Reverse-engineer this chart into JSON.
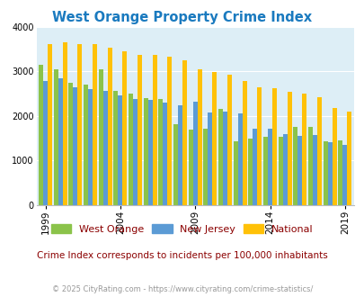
{
  "title": "West Orange Property Crime Index",
  "years": [
    1999,
    2000,
    2001,
    2002,
    2003,
    2004,
    2005,
    2006,
    2007,
    2008,
    2009,
    2010,
    2011,
    2012,
    2013,
    2014,
    2015,
    2016,
    2017,
    2018,
    2019
  ],
  "west_orange": [
    3150,
    3050,
    2750,
    2700,
    3050,
    2550,
    2500,
    2400,
    2380,
    1820,
    1700,
    1720,
    2150,
    1420,
    1480,
    1520,
    1520,
    1760,
    1750,
    1430,
    1440
  ],
  "new_jersey": [
    2780,
    2850,
    2650,
    2600,
    2550,
    2450,
    2380,
    2350,
    2300,
    2230,
    2320,
    2080,
    2090,
    2060,
    1720,
    1720,
    1600,
    1550,
    1560,
    1400,
    1340
  ],
  "national": [
    3620,
    3650,
    3620,
    3610,
    3520,
    3450,
    3370,
    3360,
    3330,
    3250,
    3050,
    2980,
    2930,
    2780,
    2640,
    2620,
    2540,
    2490,
    2410,
    2170,
    2100
  ],
  "west_orange_color": "#8bc34a",
  "new_jersey_color": "#5b9bd5",
  "national_color": "#ffc107",
  "background_color": "#ddeef6",
  "ylim": [
    0,
    4000
  ],
  "yticks": [
    0,
    1000,
    2000,
    3000,
    4000
  ],
  "xlabel_ticks": [
    1999,
    2004,
    2009,
    2014,
    2019
  ],
  "subtitle": "Crime Index corresponds to incidents per 100,000 inhabitants",
  "footer": "© 2025 CityRating.com - https://www.cityrating.com/crime-statistics/",
  "title_color": "#1a7abf",
  "subtitle_color": "#8b0000",
  "footer_color": "#999999",
  "legend_label_color": "#8b0000"
}
